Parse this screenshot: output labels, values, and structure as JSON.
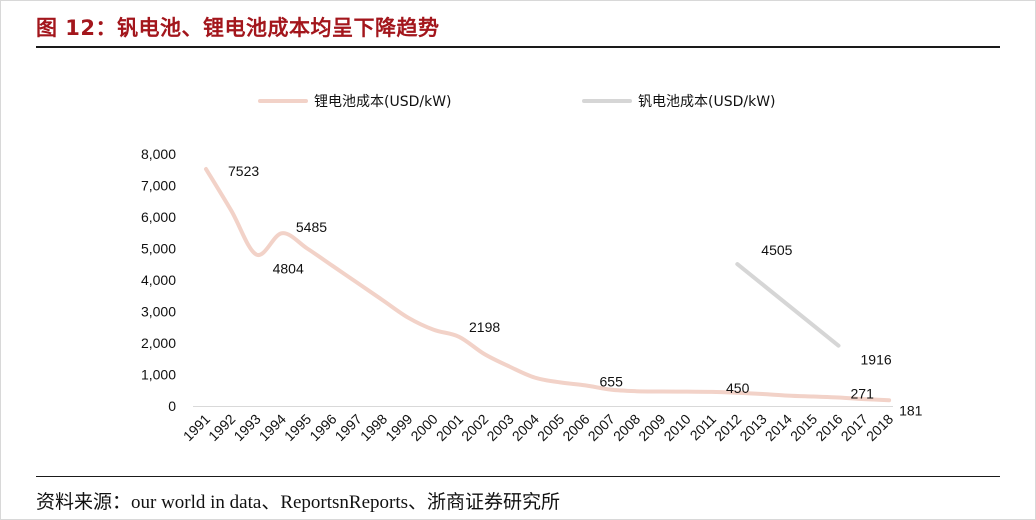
{
  "header": {
    "title": "图 12：钒电池、锂电池成本均呈下降趋势"
  },
  "footer": {
    "source": "资料来源：our world in data、ReportsnReports、浙商证券研究所"
  },
  "chart_data": {
    "type": "line",
    "categories": [
      "1991",
      "1992",
      "1993",
      "1994",
      "1995",
      "1996",
      "1997",
      "1998",
      "1999",
      "2000",
      "2001",
      "2002",
      "2003",
      "2004",
      "2005",
      "2006",
      "2007",
      "2008",
      "2009",
      "2010",
      "2011",
      "2012",
      "2013",
      "2014",
      "2015",
      "2016",
      "2017",
      "2018"
    ],
    "ylim": [
      0,
      8000
    ],
    "yticks": [
      0,
      1000,
      2000,
      3000,
      4000,
      5000,
      6000,
      7000,
      8000
    ],
    "ytick_labels": [
      "0",
      "1,000",
      "2,000",
      "3,000",
      "4,000",
      "5,000",
      "6,000",
      "7,000",
      "8,000"
    ],
    "legend_position": "top",
    "series": [
      {
        "name": "锂电池成本(USD/kW)",
        "color": "#f2d2c8",
        "values": [
          7523,
          6200,
          4804,
          5485,
          5000,
          4450,
          3900,
          3350,
          2800,
          2420,
          2198,
          1650,
          1250,
          900,
          750,
          655,
          520,
          470,
          460,
          455,
          450,
          420,
          380,
          330,
          300,
          271,
          220,
          181
        ],
        "labels": [
          {
            "category": "1991",
            "value": 7523,
            "text": "7523"
          },
          {
            "category": "1993",
            "value": 4804,
            "text": "4804"
          },
          {
            "category": "1994",
            "value": 5485,
            "text": "5485"
          },
          {
            "category": "2001",
            "value": 2198,
            "text": "2198"
          },
          {
            "category": "2006",
            "value": 655,
            "text": "655"
          },
          {
            "category": "2011",
            "value": 450,
            "text": "450"
          },
          {
            "category": "2016",
            "value": 271,
            "text": "271"
          },
          {
            "category": "2018",
            "value": 181,
            "text": "181"
          }
        ]
      },
      {
        "name": "钒电池成本(USD/kW)",
        "color": "#d6d6d6",
        "values": [
          null,
          null,
          null,
          null,
          null,
          null,
          null,
          null,
          null,
          null,
          null,
          null,
          null,
          null,
          null,
          null,
          null,
          null,
          null,
          null,
          null,
          4505,
          null,
          null,
          null,
          1916,
          null,
          null
        ],
        "labels": [
          {
            "category": "2012",
            "value": 4505,
            "text": "4505"
          },
          {
            "category": "2016",
            "value": 1916,
            "text": "1916"
          }
        ]
      }
    ]
  }
}
